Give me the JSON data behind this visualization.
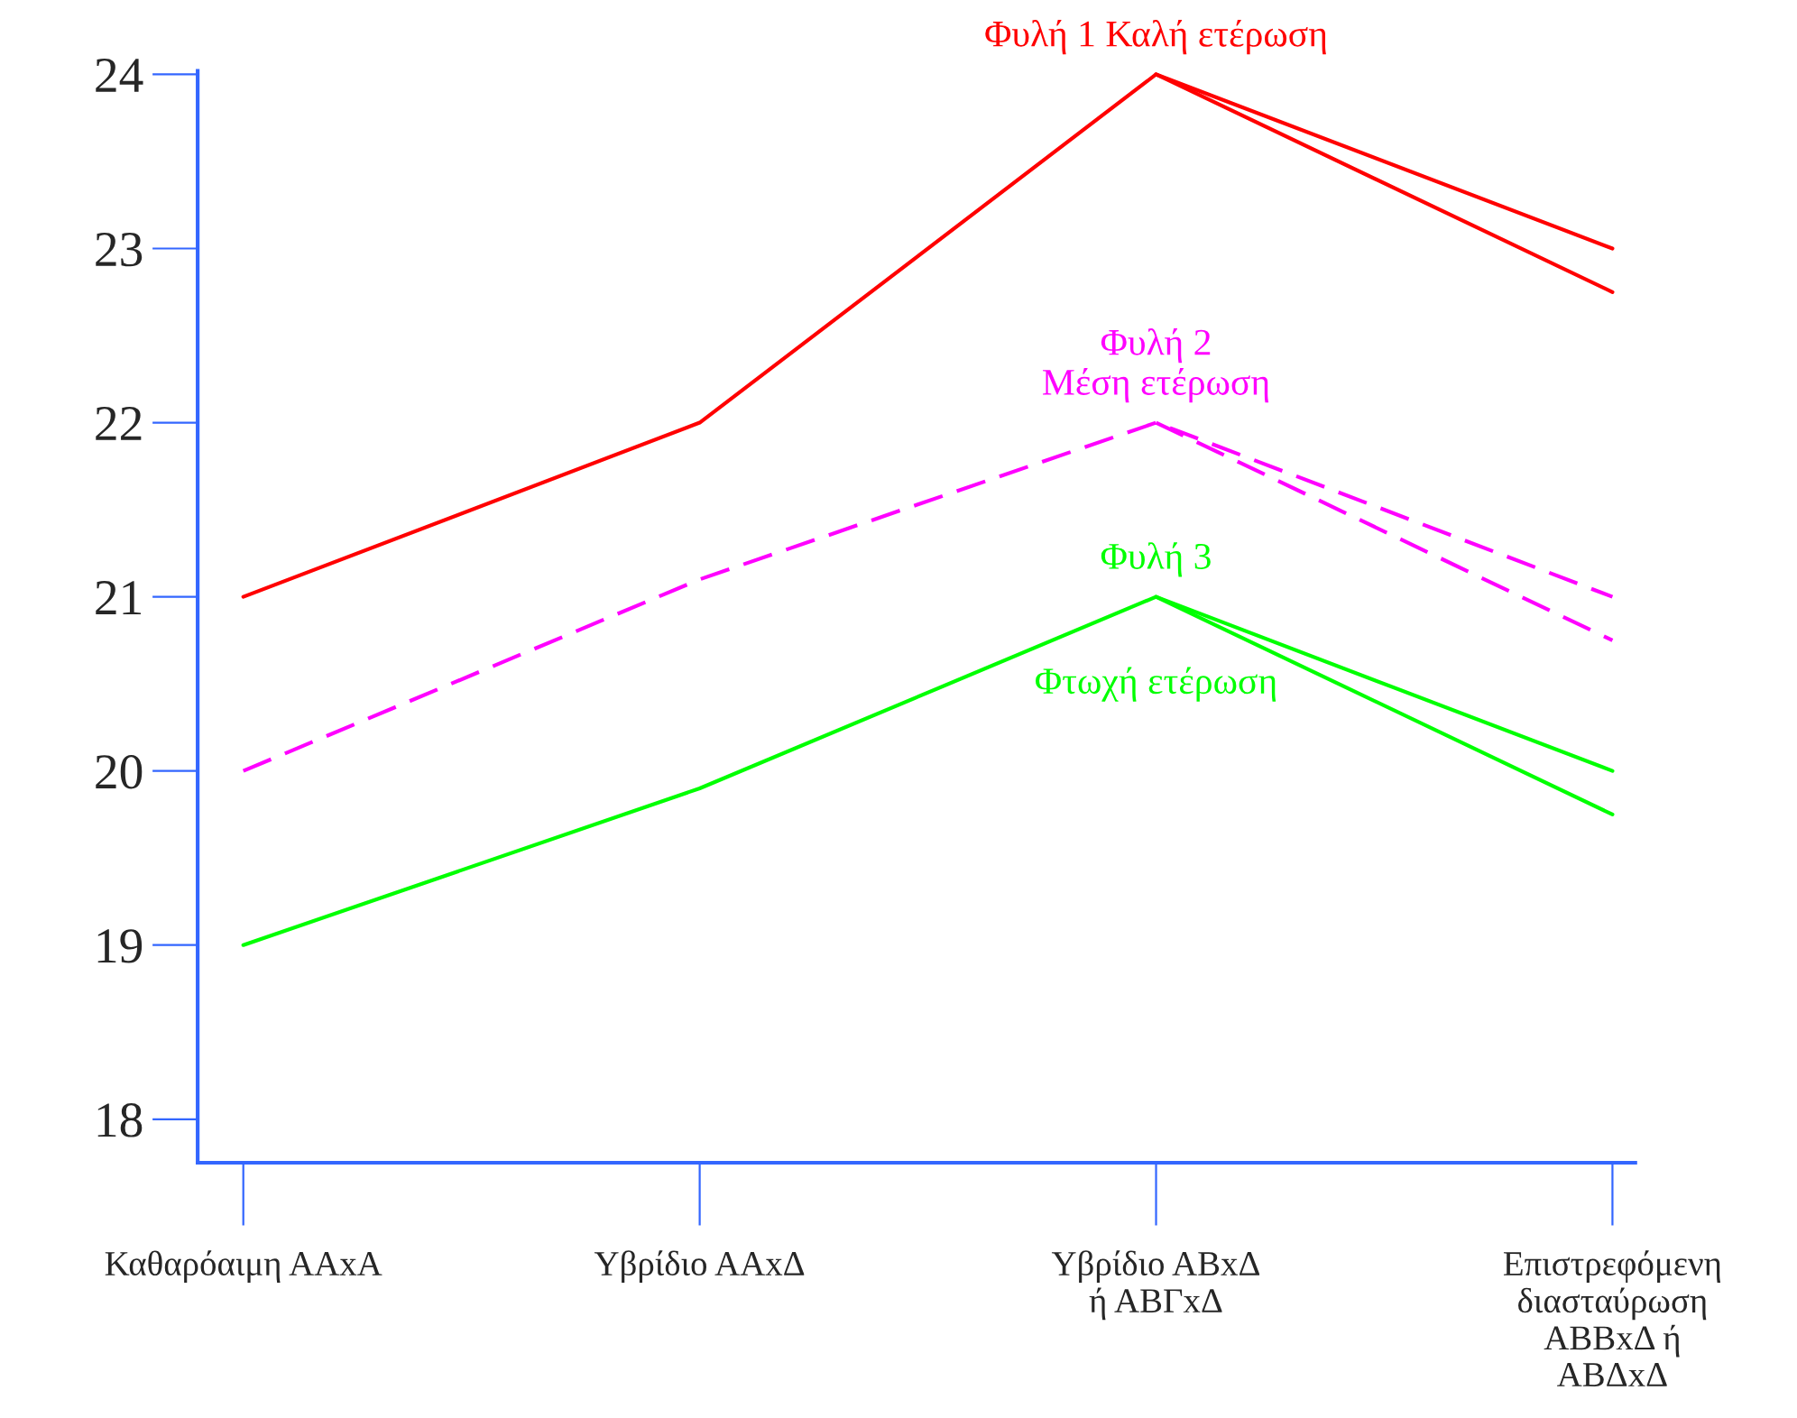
{
  "chart_data": {
    "type": "line",
    "categories": [
      "Καθαρόαιμη ΑΑxΑ",
      "Υβρίδιο ΑΑxΔ",
      "Υβρίδιο ΑΒxΔ\nή ΑΒΓxΔ",
      "Επιστρεφόμενη\nδιασταύρωση\nΑΒΒxΔ ή\nΑΒΔxΔ"
    ],
    "ylim": [
      17.75,
      24.02
    ],
    "yticks": [
      18,
      19,
      20,
      21,
      22,
      23,
      24
    ],
    "grid": false,
    "legend": false,
    "series": [
      {
        "name": "Φυλή 1 Καλή ετέρωση",
        "color": "#ff0000",
        "line_style": "solid",
        "values": [
          21,
          22,
          24,
          23
        ]
      },
      {
        "color": "#ff0000",
        "line_style": "solid",
        "values": [
          null,
          null,
          24,
          22.75
        ]
      },
      {
        "name": "Φυλή 2\nΜέση ετέρωση",
        "color": "#ff00ff",
        "line_style": "dashed",
        "values": [
          20,
          21.1,
          22,
          21
        ]
      },
      {
        "color": "#ff00ff",
        "line_style": "dashed",
        "values": [
          null,
          null,
          22,
          20.75
        ]
      },
      {
        "name": "Φυλή 3",
        "color": "#00ff00",
        "line_style": "solid",
        "values": [
          19,
          19.9,
          21,
          20
        ]
      },
      {
        "color": "#00ff00",
        "line_style": "solid",
        "values": [
          null,
          null,
          21,
          19.75
        ]
      }
    ],
    "annotations": [
      {
        "text": "Φτωχή ετέρωση",
        "x": "Υβρίδιο ΑΒxΔ\nή ΑΒΓxΔ",
        "y": 21
      }
    ]
  }
}
